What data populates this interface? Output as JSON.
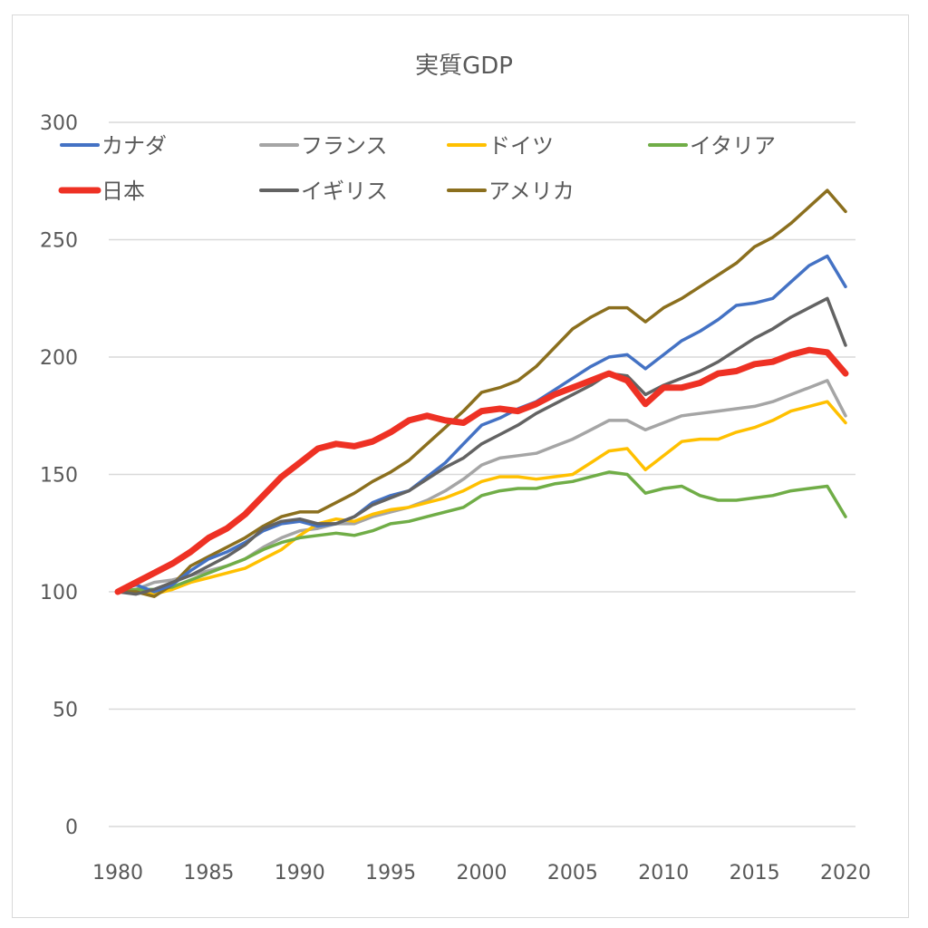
{
  "chart_data": {
    "type": "line",
    "title": "実質GDP",
    "xlabel": "",
    "ylabel": "",
    "ylim": [
      0,
      300
    ],
    "yticks": [
      0,
      50,
      100,
      150,
      200,
      250,
      300
    ],
    "xticks": [
      1980,
      1985,
      1990,
      1995,
      2000,
      2005,
      2010,
      2015,
      2020
    ],
    "grid": true,
    "legend_position": "top",
    "x": [
      1980,
      1981,
      1982,
      1983,
      1984,
      1985,
      1986,
      1987,
      1988,
      1989,
      1990,
      1991,
      1992,
      1993,
      1994,
      1995,
      1996,
      1997,
      1998,
      1999,
      2000,
      2001,
      2002,
      2003,
      2004,
      2005,
      2006,
      2007,
      2008,
      2009,
      2010,
      2011,
      2012,
      2013,
      2014,
      2015,
      2016,
      2017,
      2018,
      2019,
      2020
    ],
    "series": [
      {
        "name": "カナダ",
        "color": "#4472C4",
        "width": "normal",
        "values": [
          100,
          103,
          100,
          103,
          109,
          114,
          117,
          121,
          126,
          129,
          130,
          128,
          129,
          132,
          138,
          141,
          143,
          149,
          155,
          163,
          171,
          174,
          178,
          181,
          186,
          191,
          196,
          200,
          201,
          195,
          201,
          207,
          211,
          216,
          222,
          223,
          225,
          232,
          239,
          243,
          230
        ]
      },
      {
        "name": "フランス",
        "color": "#A5A5A5",
        "width": "normal",
        "values": [
          100,
          101,
          104,
          105,
          107,
          109,
          111,
          114,
          119,
          123,
          126,
          127,
          129,
          129,
          132,
          134,
          136,
          139,
          143,
          148,
          154,
          157,
          158,
          159,
          162,
          165,
          169,
          173,
          173,
          169,
          172,
          175,
          176,
          177,
          178,
          179,
          181,
          184,
          187,
          190,
          175
        ]
      },
      {
        "name": "ドイツ",
        "color": "#FFC000",
        "width": "normal",
        "values": [
          100,
          100,
          99,
          101,
          104,
          106,
          108,
          110,
          114,
          118,
          124,
          129,
          131,
          130,
          133,
          135,
          136,
          138,
          140,
          143,
          147,
          149,
          149,
          148,
          149,
          150,
          155,
          160,
          161,
          152,
          158,
          164,
          165,
          165,
          168,
          170,
          173,
          177,
          179,
          181,
          172
        ]
      },
      {
        "name": "イタリア",
        "color": "#70AD47",
        "width": "normal",
        "values": [
          100,
          101,
          101,
          102,
          105,
          108,
          111,
          114,
          118,
          121,
          123,
          124,
          125,
          124,
          126,
          129,
          130,
          132,
          134,
          136,
          141,
          143,
          144,
          144,
          146,
          147,
          149,
          151,
          150,
          142,
          144,
          145,
          141,
          139,
          139,
          140,
          141,
          143,
          144,
          145,
          132
        ]
      },
      {
        "name": "日本",
        "color": "#EE3124",
        "width": "bold",
        "values": [
          100,
          104,
          108,
          112,
          117,
          123,
          127,
          133,
          141,
          149,
          155,
          161,
          163,
          162,
          164,
          168,
          173,
          175,
          173,
          172,
          177,
          178,
          177,
          180,
          184,
          187,
          190,
          193,
          190,
          180,
          187,
          187,
          189,
          193,
          194,
          197,
          198,
          201,
          203,
          202,
          193
        ]
      },
      {
        "name": "イギリス",
        "color": "#636363",
        "width": "normal",
        "values": [
          100,
          99,
          101,
          104,
          107,
          111,
          115,
          120,
          127,
          130,
          131,
          129,
          129,
          132,
          137,
          140,
          143,
          148,
          153,
          157,
          163,
          167,
          171,
          176,
          180,
          184,
          188,
          193,
          192,
          184,
          188,
          191,
          194,
          198,
          203,
          208,
          212,
          217,
          221,
          225,
          205
        ]
      },
      {
        "name": "アメリカ",
        "color": "#8B6F1E",
        "width": "normal",
        "values": [
          100,
          100,
          98,
          103,
          111,
          115,
          119,
          123,
          128,
          132,
          134,
          134,
          138,
          142,
          147,
          151,
          156,
          163,
          170,
          177,
          185,
          187,
          190,
          196,
          204,
          212,
          217,
          221,
          221,
          215,
          221,
          225,
          230,
          235,
          240,
          247,
          251,
          257,
          264,
          271,
          262
        ]
      }
    ],
    "draw_order": [
      "フランス",
      "ドイツ",
      "イタリア",
      "アメリカ",
      "カナダ",
      "イギリス",
      "日本"
    ]
  }
}
